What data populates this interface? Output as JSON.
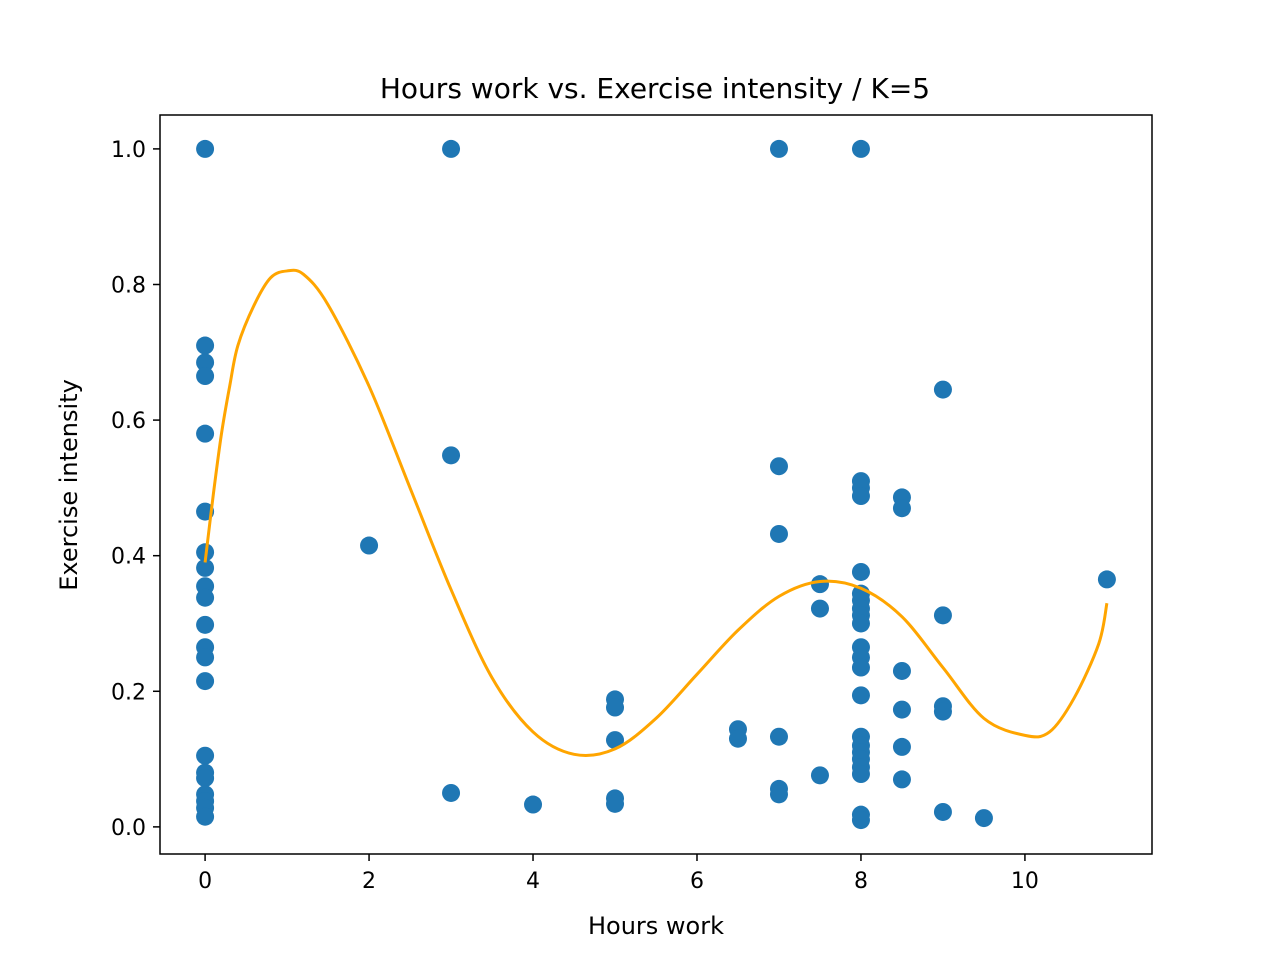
{
  "chart_data": {
    "type": "scatter",
    "title": "Hours work vs. Exercise intensity / K=5",
    "xlabel": "Hours work",
    "ylabel": "Exercise intensity",
    "xlim": [
      -0.55,
      11.55
    ],
    "ylim": [
      -0.04,
      1.05
    ],
    "x_ticks": [
      0,
      2,
      4,
      6,
      8,
      10
    ],
    "x_tick_labels": [
      "0",
      "2",
      "4",
      "6",
      "8",
      "10"
    ],
    "y_ticks": [
      0.0,
      0.2,
      0.4,
      0.6,
      0.8,
      1.0
    ],
    "y_tick_labels": [
      "0.0",
      "0.2",
      "0.4",
      "0.6",
      "0.8",
      "1.0"
    ],
    "grid": false,
    "colors": {
      "points": "#1f77b4",
      "curve": "#ffa500"
    },
    "series": [
      {
        "type": "scatter",
        "points": [
          [
            0,
            1.0
          ],
          [
            0,
            0.71
          ],
          [
            0,
            0.685
          ],
          [
            0,
            0.665
          ],
          [
            0,
            0.58
          ],
          [
            0,
            0.465
          ],
          [
            0,
            0.405
          ],
          [
            0,
            0.382
          ],
          [
            0,
            0.355
          ],
          [
            0,
            0.338
          ],
          [
            0,
            0.298
          ],
          [
            0,
            0.265
          ],
          [
            0,
            0.25
          ],
          [
            0,
            0.215
          ],
          [
            0,
            0.105
          ],
          [
            0,
            0.08
          ],
          [
            0,
            0.072
          ],
          [
            0,
            0.048
          ],
          [
            0,
            0.038
          ],
          [
            0,
            0.028
          ],
          [
            0,
            0.015
          ],
          [
            2,
            0.415
          ],
          [
            3,
            1.0
          ],
          [
            3,
            0.548
          ],
          [
            3,
            0.05
          ],
          [
            4,
            0.033
          ],
          [
            5,
            0.188
          ],
          [
            5,
            0.176
          ],
          [
            5,
            0.128
          ],
          [
            5,
            0.042
          ],
          [
            5,
            0.034
          ],
          [
            6.5,
            0.144
          ],
          [
            6.5,
            0.13
          ],
          [
            7,
            1.0
          ],
          [
            7,
            0.532
          ],
          [
            7,
            0.432
          ],
          [
            7,
            0.133
          ],
          [
            7,
            0.056
          ],
          [
            7,
            0.048
          ],
          [
            7.5,
            0.358
          ],
          [
            7.5,
            0.322
          ],
          [
            7.5,
            0.076
          ],
          [
            8,
            1.0
          ],
          [
            8,
            0.51
          ],
          [
            8,
            0.5
          ],
          [
            8,
            0.488
          ],
          [
            8,
            0.376
          ],
          [
            8,
            0.344
          ],
          [
            8,
            0.334
          ],
          [
            8,
            0.322
          ],
          [
            8,
            0.312
          ],
          [
            8,
            0.3
          ],
          [
            8,
            0.265
          ],
          [
            8,
            0.25
          ],
          [
            8,
            0.235
          ],
          [
            8,
            0.194
          ],
          [
            8,
            0.133
          ],
          [
            8,
            0.12
          ],
          [
            8,
            0.11
          ],
          [
            8,
            0.1
          ],
          [
            8,
            0.088
          ],
          [
            8,
            0.078
          ],
          [
            8,
            0.018
          ],
          [
            8,
            0.01
          ],
          [
            8.5,
            0.486
          ],
          [
            8.5,
            0.47
          ],
          [
            8.5,
            0.23
          ],
          [
            8.5,
            0.173
          ],
          [
            8.5,
            0.118
          ],
          [
            8.5,
            0.07
          ],
          [
            9,
            0.645
          ],
          [
            9,
            0.312
          ],
          [
            9,
            0.178
          ],
          [
            9,
            0.17
          ],
          [
            9,
            0.022
          ],
          [
            9.5,
            0.013
          ],
          [
            11,
            0.365
          ]
        ]
      },
      {
        "type": "line",
        "points": [
          [
            0.0,
            0.39
          ],
          [
            0.1,
            0.49
          ],
          [
            0.2,
            0.58
          ],
          [
            0.3,
            0.65
          ],
          [
            0.4,
            0.71
          ],
          [
            0.6,
            0.77
          ],
          [
            0.8,
            0.81
          ],
          [
            1.0,
            0.82
          ],
          [
            1.2,
            0.815
          ],
          [
            1.5,
            0.77
          ],
          [
            2.0,
            0.65
          ],
          [
            2.5,
            0.5
          ],
          [
            3.0,
            0.35
          ],
          [
            3.5,
            0.22
          ],
          [
            4.0,
            0.14
          ],
          [
            4.5,
            0.107
          ],
          [
            5.0,
            0.115
          ],
          [
            5.5,
            0.16
          ],
          [
            6.0,
            0.225
          ],
          [
            6.5,
            0.29
          ],
          [
            7.0,
            0.34
          ],
          [
            7.5,
            0.362
          ],
          [
            8.0,
            0.352
          ],
          [
            8.5,
            0.31
          ],
          [
            9.0,
            0.235
          ],
          [
            9.5,
            0.16
          ],
          [
            10.0,
            0.135
          ],
          [
            10.3,
            0.14
          ],
          [
            10.6,
            0.19
          ],
          [
            10.9,
            0.27
          ],
          [
            11.0,
            0.33
          ]
        ]
      }
    ]
  }
}
